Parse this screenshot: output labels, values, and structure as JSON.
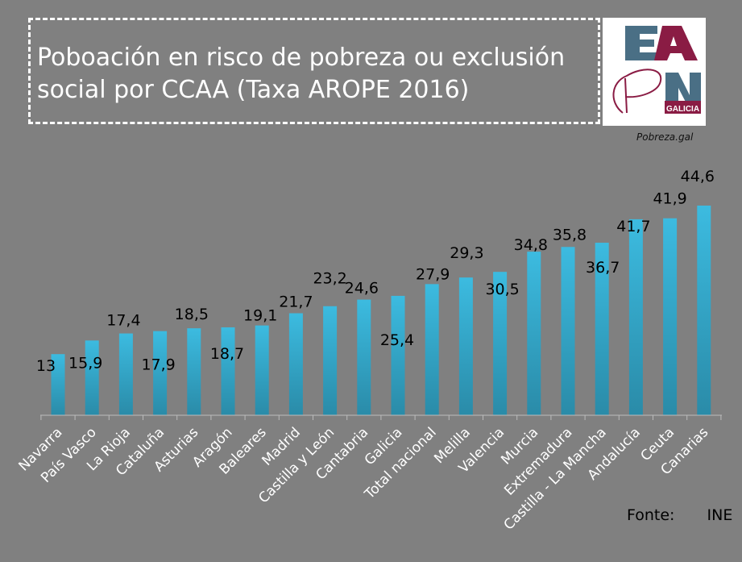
{
  "title": "Poboación en risco de pobreza ou exclusión social por CCAA (Taxa AROPE 2016)",
  "logo": {
    "text": "EAPN GALICIA",
    "colors": {
      "blue": "#4a6f85",
      "maroon": "#8a1c44"
    }
  },
  "credit": "Pobreza.gal",
  "source": {
    "label": "Fonte:",
    "value": "INE"
  },
  "chart_data": {
    "type": "bar",
    "categories": [
      "Navarra",
      "País Vasco",
      "La Rioja",
      "Cataluña",
      "Asturias",
      "Aragón",
      "Baleares",
      "Madrid",
      "Castilla y León",
      "Cantabria",
      "Galicia",
      "Total nacional",
      "Melilla",
      "Valencia",
      "Murcia",
      "Extremadura",
      "Castilla - La Mancha",
      "Andalucía",
      "Ceuta",
      "Canarias"
    ],
    "values": [
      13,
      15.9,
      17.4,
      17.9,
      18.5,
      18.7,
      19.1,
      21.7,
      23.2,
      24.6,
      25.4,
      27.9,
      29.3,
      30.5,
      34.8,
      35.8,
      36.7,
      41.7,
      41.9,
      44.6
    ],
    "data_labels": [
      "13",
      "15,9",
      "17,4",
      "17,9",
      "18,5",
      "18,7",
      "19,1",
      "21,7",
      "23,2",
      "24,6",
      "25,4",
      "27,9",
      "29,3",
      "30,5",
      "34,8",
      "35,8",
      "36,7",
      "41,7",
      "41,9",
      "44,6"
    ],
    "bar_color": "#33aed3",
    "ylim": [
      0,
      45
    ],
    "grid": false,
    "legend": "none"
  }
}
